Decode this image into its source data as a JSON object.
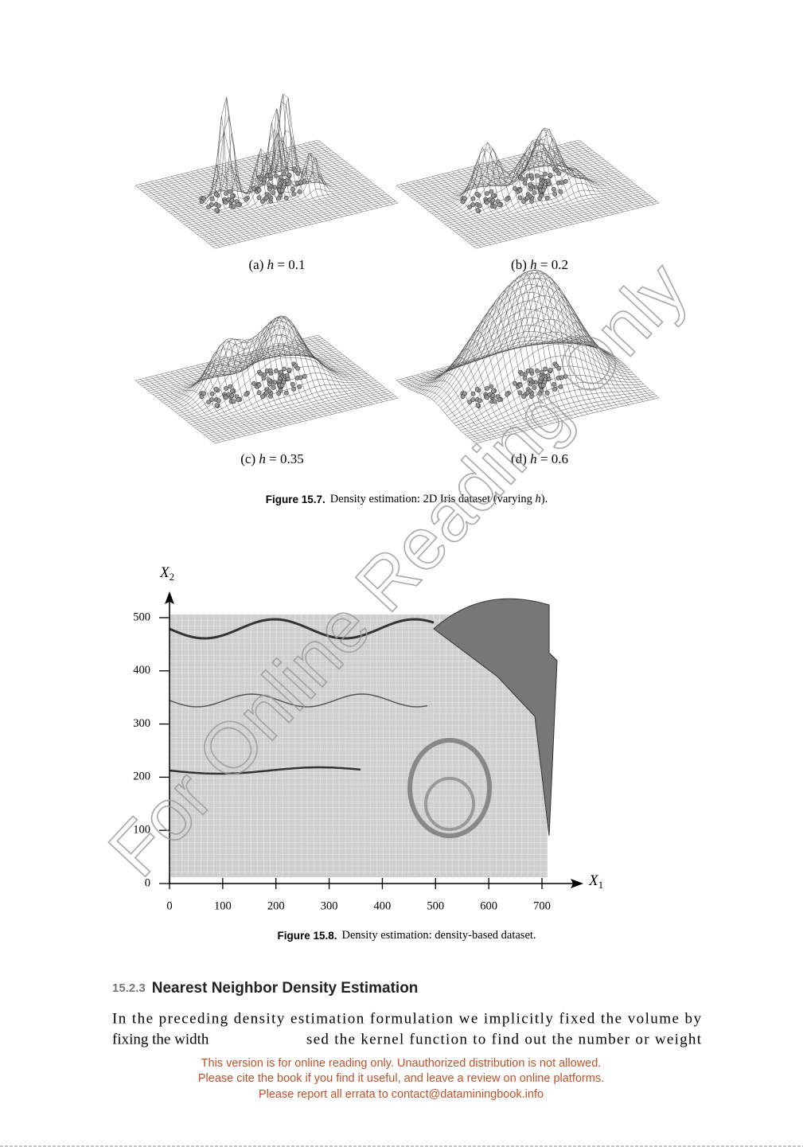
{
  "figure_15_7": {
    "panels": [
      {
        "prefix": "(a) ",
        "symbol": "h",
        "rest": " = 0.1"
      },
      {
        "prefix": "(b) ",
        "symbol": "h",
        "rest": " = 0.2"
      },
      {
        "prefix": "(c) ",
        "symbol": "h",
        "rest": " = 0.35"
      },
      {
        "prefix": "(d) ",
        "symbol": "h",
        "rest": " = 0.6"
      }
    ],
    "caption": {
      "label": "Figure 15.7.",
      "text": "Density estimation: 2D Iris dataset (varying ",
      "symbol": "h",
      "end": ")."
    }
  },
  "figure_15_8": {
    "x_axis": {
      "name": "X",
      "sub": "1",
      "ticks": [
        0,
        100,
        200,
        300,
        400,
        500,
        600,
        700
      ]
    },
    "y_axis": {
      "name": "X",
      "sub": "2",
      "ticks": [
        0,
        100,
        200,
        300,
        400,
        500
      ]
    },
    "caption": {
      "label": "Figure 15.8.",
      "text": "Density estimation: density-based dataset."
    }
  },
  "section": {
    "number": "15.2.3",
    "title": "Nearest Neighbor Density Estimation"
  },
  "paragraph": {
    "line_1": "In the preceding density estimation formulation we implicitly fixed the volume by",
    "line_2_start": "fixing the width",
    "line_2_end": "sed the kernel function to find out the number or weight"
  },
  "notice": [
    "This version is for online reading only. Unauthorized distribution is not allowed.",
    "Please cite the book if you find it useful, and leave a review on online platforms.",
    "Please report all errata to contact@dataminingbook.info"
  ],
  "watermark": "For Online Reading Only"
}
